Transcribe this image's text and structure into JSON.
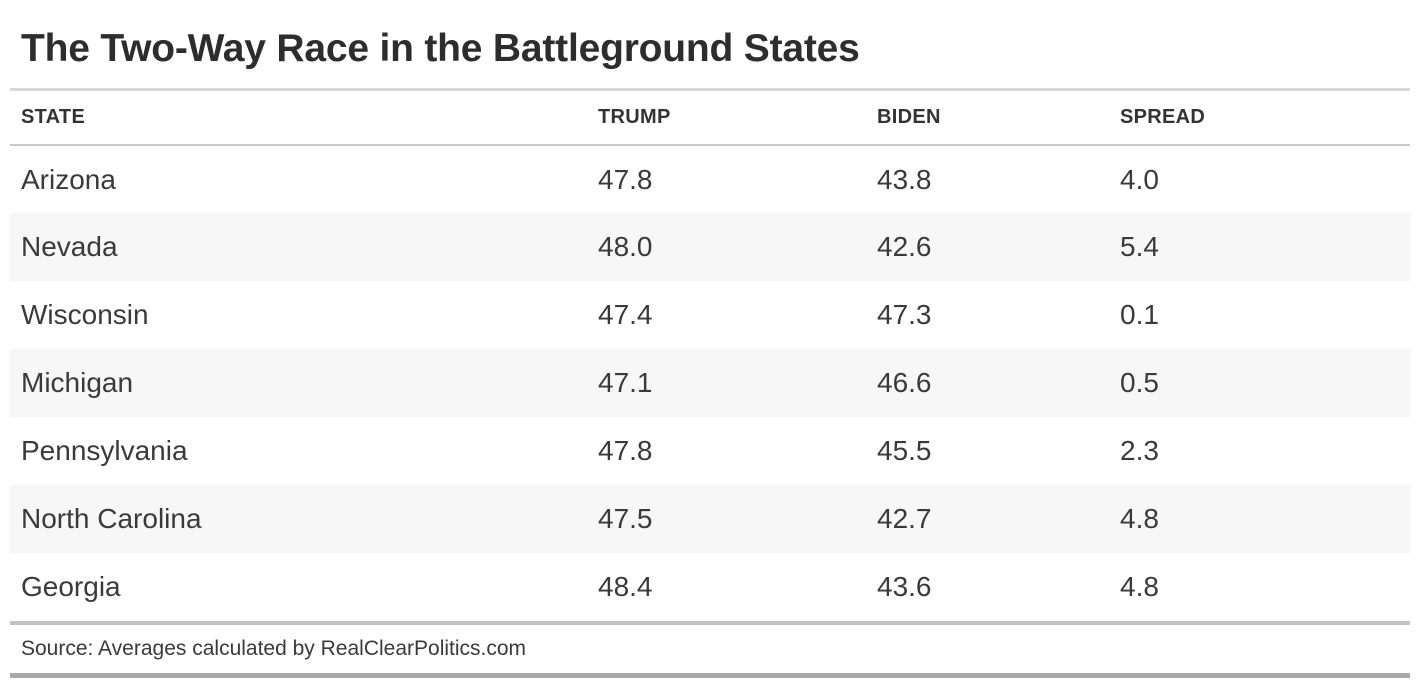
{
  "title": "The Two-Way Race in the Battleground States",
  "table": {
    "columns": [
      "STATE",
      "TRUMP",
      "BIDEN",
      "SPREAD"
    ],
    "rows": [
      {
        "state": "Arizona",
        "trump": "47.8",
        "biden": "43.8",
        "spread": "4.0"
      },
      {
        "state": "Nevada",
        "trump": "48.0",
        "biden": "42.6",
        "spread": "5.4"
      },
      {
        "state": "Wisconsin",
        "trump": "47.4",
        "biden": "47.3",
        "spread": "0.1"
      },
      {
        "state": "Michigan",
        "trump": "47.1",
        "biden": "46.6",
        "spread": "0.5"
      },
      {
        "state": "Pennsylvania",
        "trump": "47.8",
        "biden": "45.5",
        "spread": "2.3"
      },
      {
        "state": "North Carolina",
        "trump": "47.5",
        "biden": "42.7",
        "spread": "4.8"
      },
      {
        "state": "Georgia",
        "trump": "48.4",
        "biden": "43.6",
        "spread": "4.8"
      }
    ]
  },
  "footer": {
    "source": "Source: Averages calculated by RealClearPolitics.com"
  },
  "colors": {
    "title-text": "#2d2d2d",
    "header-text": "#333333",
    "body-text": "#3a3a3a",
    "stripe": "#f7f7f7",
    "rule-light": "#d8d8d8",
    "rule-mid": "#c9c9c9",
    "rule-mid2": "#c2c2c2",
    "rule-dark": "#a8a8a8",
    "background": "#ffffff"
  },
  "chart_data": {
    "type": "table",
    "title": "The Two-Way Race in the Battleground States",
    "columns": [
      "STATE",
      "TRUMP",
      "BIDEN",
      "SPREAD"
    ],
    "rows": [
      [
        "Arizona",
        47.8,
        43.8,
        4.0
      ],
      [
        "Nevada",
        48.0,
        42.6,
        5.4
      ],
      [
        "Wisconsin",
        47.4,
        47.3,
        0.1
      ],
      [
        "Michigan",
        47.1,
        46.6,
        0.5
      ],
      [
        "Pennsylvania",
        47.8,
        45.5,
        2.3
      ],
      [
        "North Carolina",
        47.5,
        42.7,
        4.8
      ],
      [
        "Georgia",
        48.4,
        43.6,
        4.8
      ]
    ],
    "source": "Source: Averages calculated by RealClearPolitics.com",
    "layout": {
      "zebra_striping": true,
      "value_alignment": "left",
      "grid": "off"
    }
  }
}
